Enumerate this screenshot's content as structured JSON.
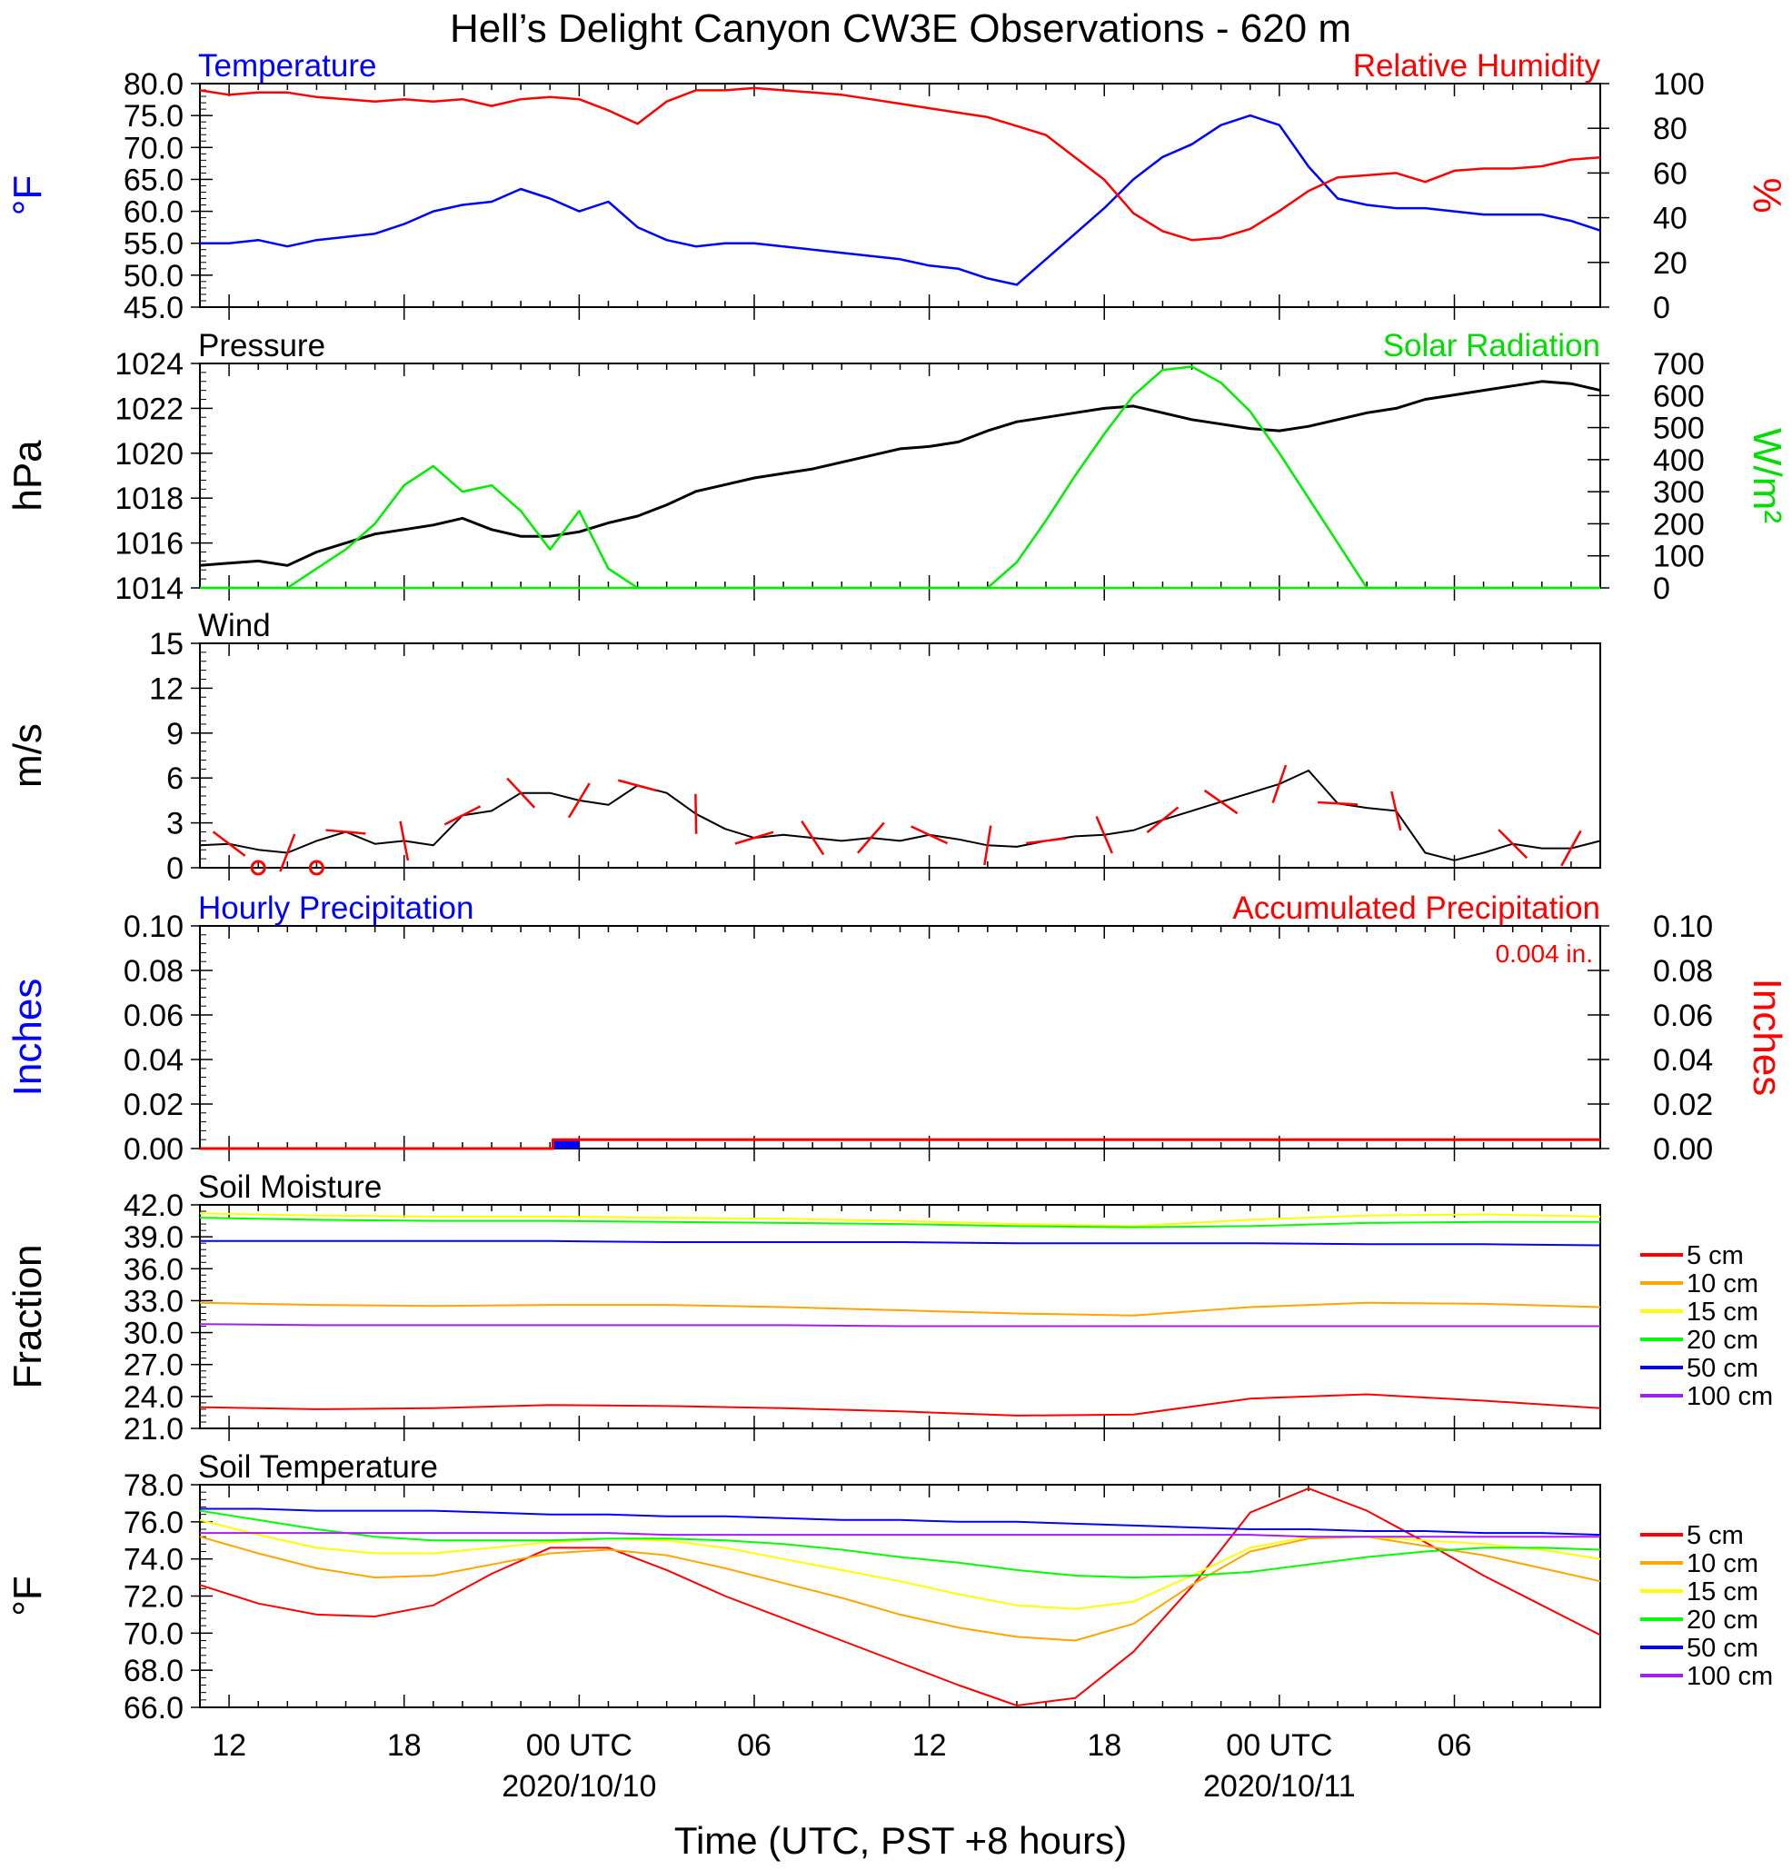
{
  "figure": {
    "title": "Hell’s Delight Canyon CW3E Observations - 620 m",
    "xlabel": "Time (UTC, PST +8 hours)",
    "x_ticks": [
      {
        "hour": 12,
        "label": "12",
        "date": ""
      },
      {
        "hour": 18,
        "label": "18",
        "date": ""
      },
      {
        "hour": 24,
        "label": "00 UTC",
        "date": "2020/10/10"
      },
      {
        "hour": 30,
        "label": "06",
        "date": ""
      },
      {
        "hour": 36,
        "label": "12",
        "date": ""
      },
      {
        "hour": 42,
        "label": "18",
        "date": ""
      },
      {
        "hour": 48,
        "label": "00 UTC",
        "date": "2020/10/11"
      },
      {
        "hour": 54,
        "label": "06",
        "date": ""
      }
    ],
    "x_range_hours_from_2020_10_09_00utc": [
      11,
      59
    ]
  },
  "chart_data": [
    {
      "type": "line",
      "panel": "temperature-humidity",
      "left_title": "Temperature",
      "right_title": "Relative Humidity",
      "ylabel_left": "°F",
      "ylabel_right": "%",
      "ylim_left": [
        45,
        80
      ],
      "ylim_right": [
        0,
        100
      ],
      "yticks_left": [
        "80.0",
        "75.0",
        "70.0",
        "65.0",
        "60.0",
        "55.0",
        "50.0",
        "45.0"
      ],
      "yticks_right": [
        "100",
        "80",
        "60",
        "40",
        "20",
        "0"
      ],
      "x": [
        11,
        12,
        13,
        14,
        15,
        16,
        17,
        18,
        19,
        20,
        21,
        22,
        23,
        24,
        25,
        26,
        27,
        28,
        29,
        30,
        31,
        32,
        33,
        34,
        35,
        36,
        37,
        38,
        39,
        40,
        41,
        42,
        43,
        44,
        45,
        46,
        47,
        48,
        49,
        50,
        51,
        52,
        53,
        54,
        55,
        56,
        57,
        58,
        59
      ],
      "series": [
        {
          "name": "Temperature",
          "axis": "left",
          "color": "#0000ff",
          "values": [
            55.0,
            55.0,
            55.5,
            54.5,
            55.5,
            56.0,
            56.5,
            58.0,
            60.0,
            61.0,
            61.5,
            63.5,
            62.0,
            60.0,
            61.5,
            57.5,
            55.5,
            54.5,
            55.0,
            55.0,
            54.5,
            54.0,
            53.5,
            53.0,
            52.5,
            51.5,
            51.0,
            49.5,
            48.5,
            52.5,
            56.5,
            60.5,
            65.0,
            68.5,
            70.5,
            73.5,
            75.0,
            73.5,
            67.0,
            62.0,
            61.0,
            60.5,
            60.5,
            60.0,
            59.5,
            59.5,
            59.5,
            58.5,
            57.0
          ]
        },
        {
          "name": "Relative Humidity",
          "axis": "right",
          "color": "#ff0000",
          "values": [
            97,
            95,
            96,
            96,
            94,
            93,
            92,
            93,
            92,
            93,
            90,
            93,
            94,
            93,
            88,
            82,
            92,
            97,
            97,
            98,
            97,
            96,
            95,
            93,
            91,
            89,
            87,
            85,
            81,
            77,
            67,
            57,
            42,
            34,
            30,
            31,
            35,
            43,
            52,
            58,
            59,
            60,
            56,
            61,
            62,
            62,
            63,
            66,
            67
          ]
        }
      ]
    },
    {
      "type": "line",
      "panel": "pressure-solar",
      "left_title": "Pressure",
      "right_title": "Solar Radiation",
      "ylabel_left": "hPa",
      "ylabel_right": "W/m²",
      "ylim_left": [
        1014,
        1024
      ],
      "ylim_right": [
        0,
        700
      ],
      "yticks_left": [
        "1024",
        "1022",
        "1020",
        "1018",
        "1016",
        "1014"
      ],
      "yticks_right": [
        "700",
        "600",
        "500",
        "400",
        "300",
        "200",
        "100",
        "0"
      ],
      "x": [
        11,
        12,
        13,
        14,
        15,
        16,
        17,
        18,
        19,
        20,
        21,
        22,
        23,
        24,
        25,
        26,
        27,
        28,
        29,
        30,
        31,
        32,
        33,
        34,
        35,
        36,
        37,
        38,
        39,
        40,
        41,
        42,
        43,
        44,
        45,
        46,
        47,
        48,
        49,
        50,
        51,
        52,
        53,
        54,
        55,
        56,
        57,
        58,
        59
      ],
      "series": [
        {
          "name": "Pressure",
          "axis": "left",
          "color": "#000000",
          "values": [
            1015.0,
            1015.1,
            1015.2,
            1015.0,
            1015.6,
            1016.0,
            1016.4,
            1016.6,
            1016.8,
            1017.1,
            1016.6,
            1016.3,
            1016.3,
            1016.5,
            1016.9,
            1017.2,
            1017.7,
            1018.3,
            1018.6,
            1018.9,
            1019.1,
            1019.3,
            1019.6,
            1019.9,
            1020.2,
            1020.3,
            1020.5,
            1021.0,
            1021.4,
            1021.6,
            1021.8,
            1022.0,
            1022.1,
            1021.8,
            1021.5,
            1021.3,
            1021.1,
            1021.0,
            1021.2,
            1021.5,
            1021.8,
            1022.0,
            1022.4,
            1022.6,
            1022.8,
            1023.0,
            1023.2,
            1023.1,
            1022.8
          ]
        },
        {
          "name": "Solar Radiation",
          "axis": "right",
          "color": "#00ee00",
          "values": [
            0,
            0,
            0,
            0,
            60,
            120,
            200,
            320,
            380,
            300,
            320,
            240,
            120,
            240,
            60,
            0,
            0,
            0,
            0,
            0,
            0,
            0,
            0,
            0,
            0,
            0,
            0,
            0,
            0,
            0,
            0,
            0,
            0,
            0,
            0,
            0,
            0,
            0,
            0,
            0,
            0,
            0,
            0,
            0,
            0,
            0,
            0,
            0,
            0
          ]
        },
        {
          "name": "Solar Radiation",
          "axis": "right",
          "color": "#00ee00",
          "values": [
            0,
            0,
            0,
            0,
            0,
            0,
            0,
            0,
            0,
            0,
            0,
            0,
            0,
            0,
            0,
            0,
            0,
            0,
            0,
            0,
            0,
            0,
            0,
            0,
            0,
            0,
            0,
            0,
            80,
            210,
            350,
            480,
            600,
            680,
            690,
            640,
            550,
            420,
            280,
            140,
            0,
            0,
            0,
            0,
            0,
            0,
            0,
            0,
            0
          ]
        }
      ]
    },
    {
      "type": "line",
      "panel": "wind",
      "left_title": "Wind",
      "ylabel_left": "m/s",
      "ylim_left": [
        0,
        15
      ],
      "yticks_left": [
        "15",
        "12",
        "9",
        "6",
        "3",
        "0"
      ],
      "x": [
        11,
        12,
        13,
        14,
        15,
        16,
        17,
        18,
        19,
        20,
        21,
        22,
        23,
        24,
        25,
        26,
        27,
        28,
        29,
        30,
        31,
        32,
        33,
        34,
        35,
        36,
        37,
        38,
        39,
        40,
        41,
        42,
        43,
        44,
        45,
        46,
        47,
        48,
        49,
        50,
        51,
        52,
        53,
        54,
        55,
        56,
        57,
        58,
        59
      ],
      "series": [
        {
          "name": "Wind speed",
          "axis": "left",
          "color": "#000000",
          "values": [
            1.5,
            1.6,
            1.2,
            1.0,
            1.8,
            2.4,
            1.6,
            1.8,
            1.5,
            3.5,
            3.8,
            5.0,
            5.0,
            4.5,
            4.2,
            5.5,
            5.0,
            3.6,
            2.6,
            2.0,
            2.2,
            2.0,
            1.8,
            2.0,
            1.8,
            2.2,
            1.9,
            1.5,
            1.4,
            1.8,
            2.1,
            2.2,
            2.5,
            3.2,
            3.8,
            4.4,
            5.0,
            5.6,
            6.5,
            4.3,
            4.0,
            3.8,
            1.0,
            0.5,
            1.0,
            1.6,
            1.3,
            1.3,
            1.8
          ]
        }
      ],
      "barbs_color": "#ff0000",
      "calm_markers_hours": [
        13,
        15
      ]
    },
    {
      "type": "bar",
      "panel": "precipitation",
      "left_title": "Hourly Precipitation",
      "right_title": "Accumulated Precipitation",
      "annotation": "0.004 in.",
      "ylabel_left": "Inches",
      "ylabel_right": "Inches",
      "ylim_left": [
        0,
        0.1
      ],
      "ylim_right": [
        0,
        0.1
      ],
      "yticks_left": [
        "0.10",
        "0.08",
        "0.06",
        "0.04",
        "0.02",
        "0.00"
      ],
      "yticks_right": [
        "0.10",
        "0.08",
        "0.06",
        "0.04",
        "0.02",
        "0.00"
      ],
      "hourly_bar": {
        "x_start": 23.1,
        "x_end": 24.0,
        "value": 0.004,
        "color": "#0000ff"
      },
      "accumulated": {
        "x": [
          11,
          23.1,
          23.1,
          59
        ],
        "values": [
          0.0,
          0.0,
          0.004,
          0.004
        ],
        "color": "#ff0000"
      }
    },
    {
      "type": "line",
      "panel": "soil-moisture",
      "left_title": "Soil Moisture",
      "ylabel_left": "Fraction",
      "ylim_left": [
        21,
        42
      ],
      "yticks_left": [
        "42.0",
        "39.0",
        "36.0",
        "33.0",
        "30.0",
        "27.0",
        "24.0",
        "21.0"
      ],
      "x": [
        11,
        15,
        19,
        23,
        27,
        31,
        35,
        39,
        43,
        47,
        51,
        55,
        59
      ],
      "series": [
        {
          "name": "5 cm",
          "color": "#ff0000",
          "values": [
            23.0,
            22.8,
            22.9,
            23.2,
            23.1,
            22.9,
            22.6,
            22.2,
            22.3,
            23.8,
            24.2,
            23.6,
            22.9
          ]
        },
        {
          "name": "10 cm",
          "color": "#ffa500",
          "values": [
            32.8,
            32.6,
            32.5,
            32.6,
            32.6,
            32.4,
            32.1,
            31.8,
            31.6,
            32.4,
            32.8,
            32.7,
            32.4
          ]
        },
        {
          "name": "15 cm",
          "color": "#ffff00",
          "values": [
            41.2,
            41.0,
            40.9,
            40.9,
            40.8,
            40.7,
            40.5,
            40.2,
            40.0,
            40.6,
            41.0,
            41.1,
            40.9
          ]
        },
        {
          "name": "20 cm",
          "color": "#00ff00",
          "values": [
            40.8,
            40.6,
            40.5,
            40.5,
            40.4,
            40.3,
            40.2,
            40.0,
            39.9,
            40.0,
            40.3,
            40.4,
            40.4
          ]
        },
        {
          "name": "50 cm",
          "color": "#0000ff",
          "values": [
            38.6,
            38.6,
            38.6,
            38.6,
            38.5,
            38.5,
            38.5,
            38.4,
            38.4,
            38.4,
            38.3,
            38.3,
            38.2
          ]
        },
        {
          "name": "100 cm",
          "color": "#a020f0",
          "values": [
            30.8,
            30.7,
            30.7,
            30.7,
            30.7,
            30.7,
            30.6,
            30.6,
            30.6,
            30.6,
            30.6,
            30.6,
            30.6
          ]
        }
      ]
    },
    {
      "type": "line",
      "panel": "soil-temperature",
      "left_title": "Soil Temperature",
      "ylabel_left": "°F",
      "ylim_left": [
        66,
        78
      ],
      "yticks_left": [
        "78.0",
        "76.0",
        "74.0",
        "72.0",
        "70.0",
        "68.0",
        "66.0"
      ],
      "x": [
        11,
        13,
        15,
        17,
        19,
        21,
        23,
        25,
        27,
        29,
        31,
        33,
        35,
        37,
        39,
        41,
        43,
        45,
        47,
        49,
        51,
        53,
        55,
        57,
        59
      ],
      "series": [
        {
          "name": "5 cm",
          "color": "#ff0000",
          "values": [
            72.6,
            71.6,
            71.0,
            70.9,
            71.5,
            73.2,
            74.6,
            74.6,
            73.4,
            72.0,
            70.8,
            69.6,
            68.4,
            67.2,
            66.1,
            66.5,
            69.0,
            72.5,
            76.5,
            77.8,
            76.6,
            74.9,
            73.1,
            71.5,
            69.9
          ]
        },
        {
          "name": "10 cm",
          "color": "#ffa500",
          "values": [
            75.2,
            74.3,
            73.5,
            73.0,
            73.1,
            73.7,
            74.3,
            74.5,
            74.2,
            73.5,
            72.7,
            71.9,
            71.0,
            70.3,
            69.8,
            69.6,
            70.5,
            72.6,
            74.4,
            75.1,
            75.2,
            74.7,
            74.2,
            73.5,
            72.8
          ]
        },
        {
          "name": "15 cm",
          "color": "#ffff00",
          "values": [
            76.1,
            75.3,
            74.6,
            74.3,
            74.3,
            74.6,
            74.9,
            75.1,
            75.0,
            74.6,
            74.0,
            73.4,
            72.8,
            72.1,
            71.5,
            71.3,
            71.7,
            73.1,
            74.6,
            75.2,
            75.2,
            75.0,
            74.8,
            74.5,
            74.0
          ]
        },
        {
          "name": "20 cm",
          "color": "#00ff00",
          "values": [
            76.6,
            76.1,
            75.6,
            75.2,
            75.0,
            75.0,
            75.0,
            75.1,
            75.1,
            75.0,
            74.8,
            74.5,
            74.1,
            73.8,
            73.4,
            73.1,
            73.0,
            73.1,
            73.3,
            73.7,
            74.1,
            74.4,
            74.6,
            74.6,
            74.5
          ]
        },
        {
          "name": "50 cm",
          "color": "#0000ff",
          "values": [
            76.7,
            76.7,
            76.6,
            76.6,
            76.6,
            76.5,
            76.4,
            76.4,
            76.3,
            76.3,
            76.2,
            76.1,
            76.1,
            76.0,
            76.0,
            75.9,
            75.8,
            75.7,
            75.6,
            75.6,
            75.5,
            75.5,
            75.4,
            75.4,
            75.3
          ]
        },
        {
          "name": "100 cm",
          "color": "#a020f0",
          "values": [
            75.4,
            75.4,
            75.4,
            75.4,
            75.4,
            75.4,
            75.4,
            75.4,
            75.3,
            75.3,
            75.3,
            75.3,
            75.3,
            75.3,
            75.3,
            75.3,
            75.3,
            75.3,
            75.3,
            75.2,
            75.2,
            75.2,
            75.2,
            75.2,
            75.2
          ]
        }
      ]
    }
  ]
}
